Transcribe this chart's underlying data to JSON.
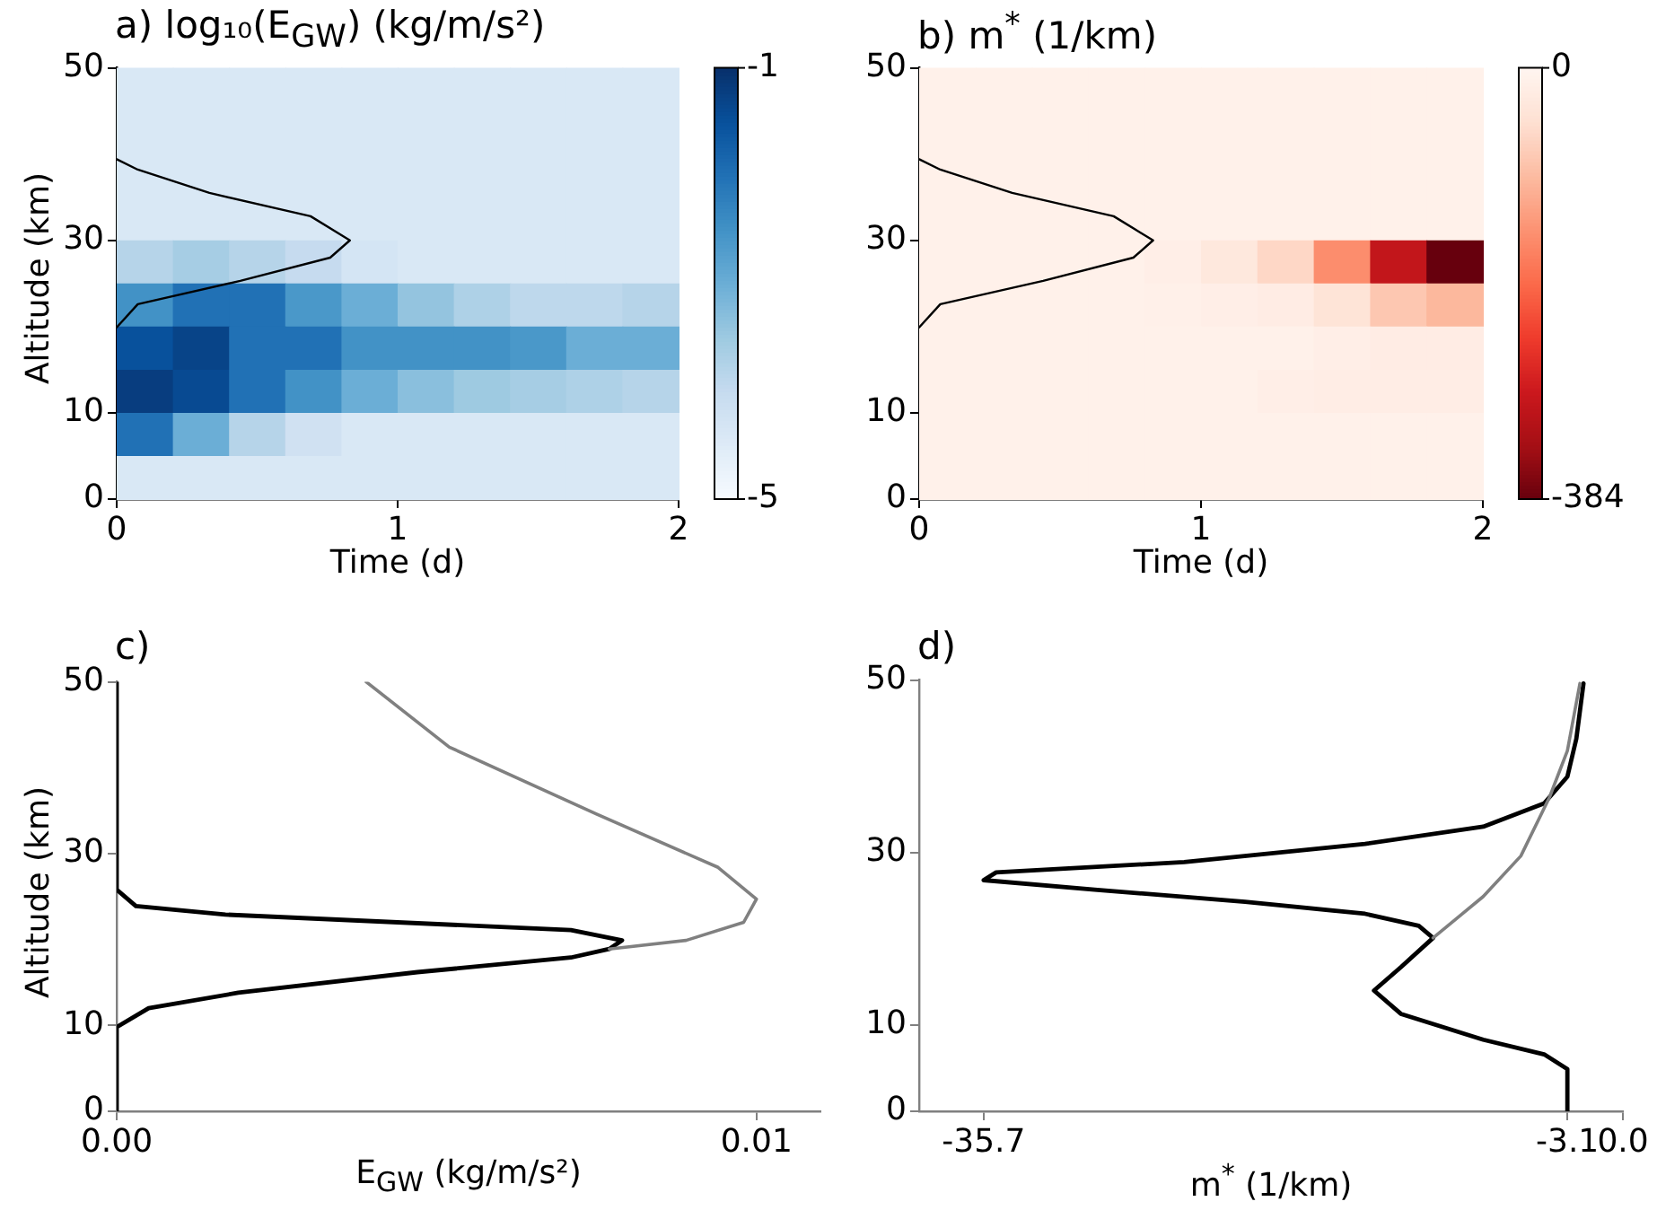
{
  "chart_data": [
    {
      "type": "heatmap",
      "title": "a) log₁₀(E$_{GW}$) (kg/m/s²)",
      "xlabel": "Time (d)",
      "ylabel": "Altitude (km)",
      "cells": [
        [
          -4.4,
          -4.4,
          -4.4,
          -4.4,
          -4.4,
          -4.4,
          -4.4,
          -4.4,
          -4.4,
          -4.4
        ],
        [
          -4.4,
          -4.4,
          -4.4,
          -4.4,
          -4.4,
          -4.4,
          -4.4,
          -4.4,
          -4.4,
          -4.4
        ],
        [
          -4.4,
          -4.4,
          -4.4,
          -4.4,
          -4.4,
          -4.4,
          -4.4,
          -4.4,
          -4.4,
          -4.4
        ],
        [
          -4.4,
          -4.4,
          -4.4,
          -4.4,
          -4.4,
          -4.4,
          -4.4,
          -4.4,
          -4.4,
          -4.4
        ],
        [
          -3.8,
          -3.6,
          -3.8,
          -4.0,
          -4.3,
          -4.4,
          -4.4,
          -4.4,
          -4.4,
          -4.4
        ],
        [
          -2.5,
          -2.0,
          -2.0,
          -2.6,
          -3.0,
          -3.4,
          -3.7,
          -3.9,
          -3.9,
          -3.8
        ],
        [
          -1.5,
          -1.3,
          -2.0,
          -2.0,
          -2.5,
          -2.5,
          -2.5,
          -2.6,
          -3.0,
          -3.0
        ],
        [
          -1.2,
          -1.4,
          -2.0,
          -2.5,
          -3.0,
          -3.3,
          -3.5,
          -3.6,
          -3.7,
          -3.8
        ],
        [
          -2.0,
          -3.0,
          -3.8,
          -4.2,
          -4.4,
          -4.4,
          -4.4,
          -4.4,
          -4.4,
          -4.4
        ],
        [
          -4.4,
          -4.4,
          -4.4,
          -4.4,
          -4.4,
          -4.4,
          -4.4,
          -4.4,
          -4.4,
          -4.4
        ]
      ],
      "clim": [
        -5,
        -1
      ],
      "cticks": [
        -5,
        -1
      ],
      "xlim": [
        0,
        2
      ],
      "xticks": [
        0,
        1,
        2
      ],
      "ylim": [
        0,
        50
      ],
      "yticks": [
        0,
        10,
        30,
        50
      ],
      "series": [
        {
          "type": "line",
          "color": "#000000",
          "x": [
            0,
            0.075,
            0.44,
            0.76,
            0.83,
            0.69,
            0.33,
            0.075,
            0
          ],
          "values": [
            19.9,
            22.6,
            25.3,
            28.0,
            30,
            32.8,
            35.5,
            38.2,
            39.4
          ]
        }
      ]
    },
    {
      "type": "heatmap",
      "title": "b) m$^{*}$ (1/km)",
      "xlabel": "Time (d)",
      "cells": [
        [
          -10,
          -10,
          -10,
          -10,
          -10,
          -10,
          -10,
          -10,
          -10,
          -10
        ],
        [
          -10,
          -10,
          -10,
          -10,
          -10,
          -10,
          -10,
          -10,
          -10,
          -10
        ],
        [
          -10,
          -10,
          -10,
          -10,
          -10,
          -10,
          -10,
          -10,
          -10,
          -10
        ],
        [
          -10,
          -10,
          -10,
          -10,
          -10,
          -10,
          -10,
          -10,
          -10,
          -10
        ],
        [
          -10,
          -10,
          -10,
          -10,
          -15,
          -30,
          -60,
          -150,
          -300,
          -384
        ],
        [
          -10,
          -10,
          -10,
          -10,
          -12,
          -15,
          -20,
          -40,
          -80,
          -100
        ],
        [
          -10,
          -10,
          -10,
          -10,
          -10,
          -10,
          -10,
          -15,
          -20,
          -20
        ],
        [
          -10,
          -10,
          -10,
          -10,
          -10,
          -10,
          -15,
          -18,
          -18,
          -18
        ],
        [
          -10,
          -10,
          -10,
          -10,
          -10,
          -10,
          -10,
          -10,
          -10,
          -10
        ],
        [
          -10,
          -10,
          -10,
          -10,
          -10,
          -10,
          -10,
          -10,
          -10,
          -10
        ]
      ],
      "clim": [
        -384,
        0
      ],
      "cticks": [
        -384,
        0
      ],
      "xlim": [
        0,
        2
      ],
      "xticks": [
        0,
        1,
        2
      ],
      "ylim": [
        0,
        50
      ],
      "yticks": [
        0,
        10,
        30,
        50
      ],
      "series": [
        {
          "type": "line",
          "color": "#000000",
          "x": [
            0,
            0.075,
            0.44,
            0.76,
            0.83,
            0.69,
            0.33,
            0.075,
            0
          ],
          "values": [
            19.9,
            22.6,
            25.3,
            28.0,
            30,
            32.8,
            35.5,
            38.2,
            39.4
          ]
        }
      ]
    },
    {
      "type": "line",
      "title": "c)",
      "xlabel": "E$_{GW}$ (kg/m/s²)",
      "ylabel": "Altitude (km)",
      "xlim": [
        0,
        0.011
      ],
      "xticks": [
        {
          "value": 0,
          "label": "0.00"
        },
        0.01
      ],
      "ylim": [
        0,
        50
      ],
      "yticks": [
        0,
        10,
        30,
        50
      ],
      "series": [
        {
          "color": "#808080",
          "x": [
            0.0039,
            0.0052,
            0.0075,
            0.0094,
            0.01,
            0.0098,
            0.0089,
            0.0077
          ],
          "values": [
            50,
            42.4,
            34.6,
            28.4,
            24.7,
            22.0,
            19.9,
            18.9
          ]
        },
        {
          "color": "#000000",
          "x": [
            0,
            0,
            0.0003,
            0.0017,
            0.0071,
            0.0079,
            0.0077,
            0.0071,
            0.0047,
            0.0019,
            0.0005,
            0,
            0
          ],
          "values": [
            50,
            25.8,
            23.9,
            22.9,
            21.1,
            19.9,
            18.9,
            17.9,
            16.2,
            13.8,
            12.0,
            9.8,
            0
          ]
        }
      ]
    },
    {
      "type": "line",
      "title": "d)",
      "xlabel": "m$^{*}$ (1/km)",
      "xlim": [
        -39.3,
        0
      ],
      "xticks": [
        -35.7,
        -3.1,
        {
          "value": 0,
          "label": "0.0"
        }
      ],
      "ylim": [
        0,
        50
      ],
      "yticks": [
        0,
        10,
        30,
        50
      ],
      "series": [
        {
          "color": "#808080",
          "x": [
            -10.6,
            -7.8,
            -5.7,
            -4.1,
            -3.1,
            -2.4
          ],
          "values": [
            20.1,
            24.9,
            29.6,
            36.4,
            41.8,
            49.6
          ]
        },
        {
          "color": "#000000",
          "x": [
            -3.1,
            -3.1,
            -4.4,
            -7.8,
            -12.4,
            -13.9,
            -12.4,
            -10.6,
            -11.4,
            -14.4,
            -21.1,
            -29.5,
            -35.7,
            -35.0,
            -24.5,
            -14.4,
            -7.8,
            -4.4,
            -3.1,
            -2.6,
            -2.2
          ],
          "values": [
            0,
            4.9,
            6.6,
            8.3,
            11.3,
            14.0,
            16.7,
            20.1,
            21.5,
            22.9,
            24.3,
            25.7,
            26.8,
            27.7,
            28.9,
            31.0,
            33.0,
            35.7,
            38.8,
            43.2,
            49.6
          ]
        }
      ]
    }
  ]
}
